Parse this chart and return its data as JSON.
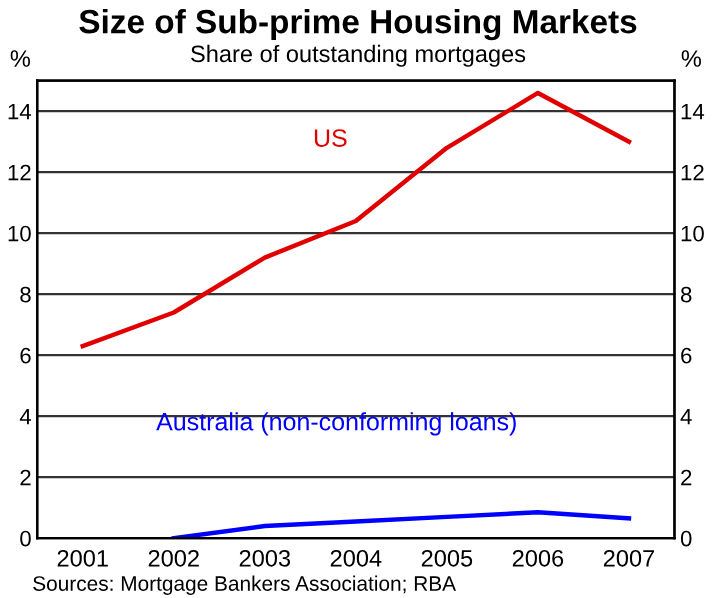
{
  "chart_data": {
    "type": "line",
    "title": "Size of Sub-prime Housing Markets",
    "subtitle": "Share of outstanding mortgages",
    "ylabel": "%",
    "y2label": "%",
    "categories": [
      "2001",
      "2002",
      "2003",
      "2004",
      "2005",
      "2006",
      "2007"
    ],
    "series": [
      {
        "name": "US",
        "color": "#e00000",
        "values": [
          6.3,
          7.4,
          9.2,
          10.4,
          12.8,
          14.6,
          13.0
        ]
      },
      {
        "name": "Australia (non-conforming loans)",
        "color": "#0000ff",
        "values": [
          null,
          0.0,
          0.4,
          0.55,
          0.7,
          0.85,
          0.65
        ]
      }
    ],
    "ylim": [
      0,
      15
    ],
    "yticks": [
      0,
      2,
      4,
      6,
      8,
      10,
      12,
      14
    ],
    "y2lim": [
      0,
      15
    ],
    "y2ticks": [
      0,
      2,
      4,
      6,
      8,
      10,
      12,
      14
    ],
    "grid": "y",
    "legend": false,
    "marker": "none",
    "line_style": "solid",
    "annotations": [
      "Sources: Mortgage Bankers Association; RBA"
    ]
  }
}
